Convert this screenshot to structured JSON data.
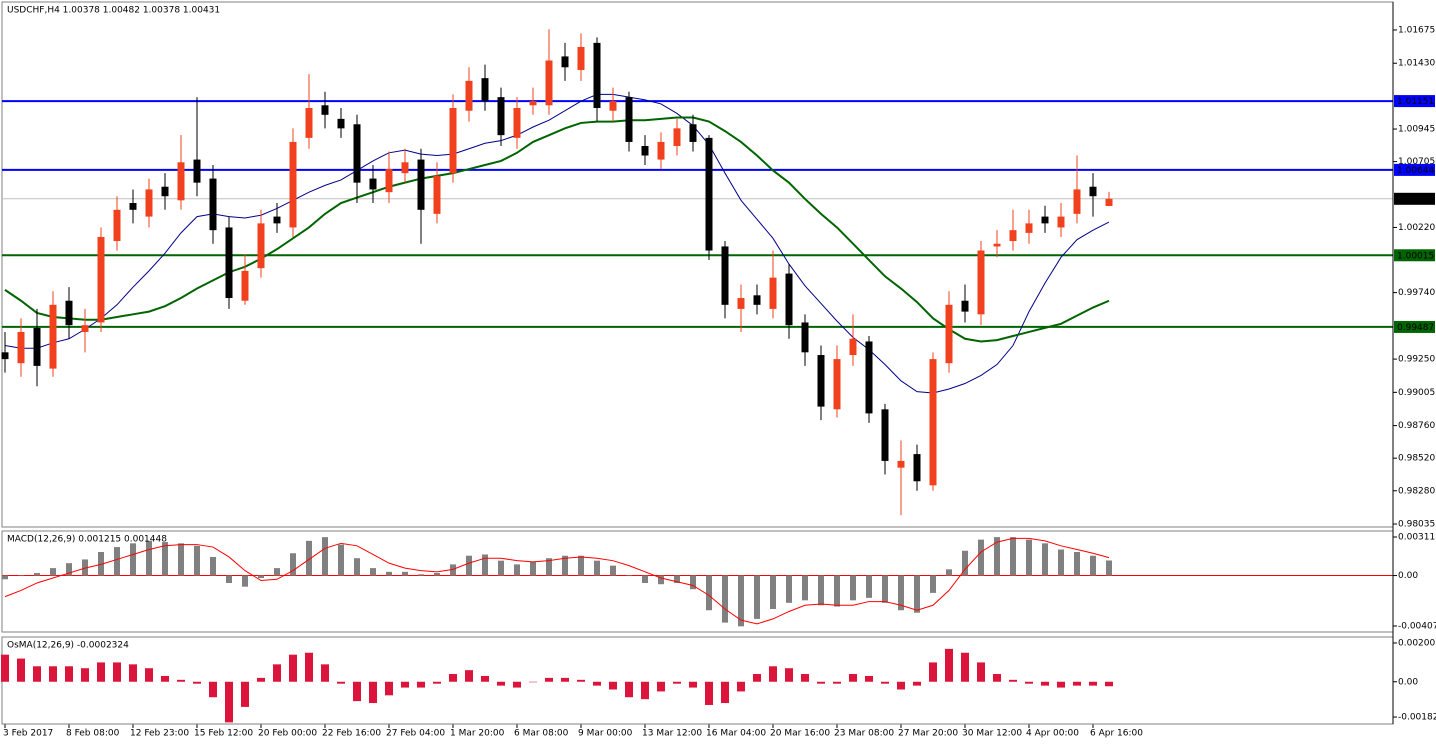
{
  "chart_data": [
    {
      "type": "candlestick",
      "title": "USDCHF,H4  1.00378 1.00482 1.00378 1.00431",
      "categories": [
        "3 Feb 2017",
        null,
        null,
        null,
        "8 Feb 08:00",
        null,
        null,
        null,
        "12 Feb 23:00",
        null,
        null,
        null,
        "15 Feb 12:00",
        null,
        null,
        null,
        "20 Feb 00:00",
        null,
        null,
        null,
        "22 Feb 16:00",
        null,
        null,
        null,
        "27 Feb 04:00",
        null,
        null,
        null,
        "1 Mar 20:00",
        null,
        null,
        null,
        "6 Mar 08:00",
        null,
        null,
        null,
        "9 Mar 00:00",
        null,
        null,
        null,
        "13 Mar 12:00",
        null,
        null,
        null,
        "16 Mar 04:00",
        null,
        null,
        null,
        "20 Mar 16:00",
        null,
        null,
        null,
        "23 Mar 08:00",
        null,
        null,
        null,
        "27 Mar 20:00",
        null,
        null,
        null,
        "30 Mar 12:00",
        null,
        null,
        null,
        "4 Apr 00:00",
        null,
        null,
        null,
        "6 Apr 16:00",
        null
      ],
      "open": [
        0.993,
        0.9922,
        0.9948,
        0.9918,
        0.9968,
        0.9945,
        0.9952,
        1.0012,
        1.004,
        1.003,
        1.0052,
        1.0042,
        1.0072,
        1.0058,
        1.0022,
        0.9968,
        0.9992,
        1.003,
        1.0022,
        1.0088,
        1.0112,
        1.0102,
        1.0098,
        1.0058,
        1.0048,
        1.0062,
        1.0072,
        1.0032,
        1.0062,
        1.0108,
        1.0132,
        1.0118,
        1.0088,
        1.0112,
        1.0112,
        1.0148,
        1.0138,
        1.0158,
        1.0108,
        1.0118,
        1.0082,
        1.0072,
        1.0082,
        1.0098,
        1.0088,
        1.0008,
        0.9962,
        0.9972,
        0.9962,
        0.9988,
        0.9952,
        0.9928,
        0.9888,
        0.9928,
        0.9938,
        0.9888,
        0.9845,
        0.9855,
        0.9832,
        0.9922,
        0.9968,
        0.9958,
        1.0008,
        1.0012,
        1.0018,
        1.003,
        1.0022,
        1.0032,
        1.0052,
        1.00378
      ],
      "high": [
        0.9945,
        0.9955,
        0.9962,
        0.9975,
        0.9978,
        0.9962,
        1.0022,
        1.0045,
        1.005,
        1.0058,
        1.0062,
        1.009,
        1.0118,
        1.0068,
        1.003,
        1.0002,
        1.0035,
        1.004,
        1.0095,
        1.0135,
        1.0122,
        1.011,
        1.0105,
        1.0068,
        1.0078,
        1.008,
        1.008,
        1.007,
        1.012,
        1.014,
        1.0142,
        1.0125,
        1.0118,
        1.0125,
        1.0168,
        1.0158,
        1.0165,
        1.0162,
        1.0125,
        1.0122,
        1.009,
        1.0092,
        1.0102,
        1.0105,
        1.009,
        1.0012,
        0.998,
        0.998,
        1.0005,
        0.9995,
        0.9958,
        0.9935,
        0.9935,
        0.9958,
        0.9942,
        0.9892,
        0.9865,
        0.9862,
        0.993,
        0.9975,
        0.998,
        1.0012,
        1.002,
        1.0035,
        1.0035,
        1.0038,
        1.004,
        1.0075,
        1.0062,
        1.00482
      ],
      "low": [
        0.9915,
        0.9912,
        0.9905,
        0.9912,
        0.994,
        0.993,
        0.9945,
        1.0005,
        1.0025,
        1.0022,
        1.0035,
        1.0035,
        1.0045,
        1.001,
        0.9962,
        0.9965,
        0.9985,
        1.0018,
        1.0015,
        1.008,
        1.0095,
        1.0088,
        1.004,
        1.004,
        1.004,
        1.0055,
        1.001,
        1.0025,
        1.0055,
        1.01,
        1.0108,
        1.0082,
        1.008,
        1.0105,
        1.0105,
        1.013,
        1.013,
        1.01,
        1.01,
        1.0078,
        1.0068,
        1.0065,
        1.0075,
        1.0078,
        0.9998,
        0.9955,
        0.9945,
        0.9958,
        0.9955,
        0.994,
        0.992,
        0.988,
        0.9882,
        0.992,
        0.9878,
        0.984,
        0.981,
        0.9828,
        0.9828,
        0.9915,
        0.9952,
        0.995,
        1.0,
        1.0005,
        1.001,
        1.0018,
        1.0015,
        1.0025,
        1.003,
        1.00378
      ],
      "close": [
        0.9925,
        0.9945,
        0.992,
        0.9965,
        0.995,
        0.995,
        1.0015,
        1.0035,
        1.0035,
        1.005,
        1.0045,
        1.007,
        1.0055,
        1.002,
        0.997,
        0.999,
        1.0025,
        1.0025,
        1.0085,
        1.011,
        1.0105,
        1.0095,
        1.0055,
        1.005,
        1.0065,
        1.007,
        1.0035,
        1.006,
        1.011,
        1.013,
        1.0115,
        1.009,
        1.011,
        1.0115,
        1.0145,
        1.014,
        1.0155,
        1.011,
        1.0115,
        1.0085,
        1.0075,
        1.0085,
        1.0095,
        1.0085,
        1.0005,
        0.9965,
        0.997,
        0.9965,
        0.9985,
        0.995,
        0.993,
        0.989,
        0.9925,
        0.994,
        0.9885,
        0.985,
        0.985,
        0.9835,
        0.9925,
        0.9965,
        0.996,
        1.0005,
        1.001,
        1.002,
        1.0025,
        1.0025,
        1.003,
        1.005,
        1.0045,
        1.00431
      ],
      "up_color": "#f0401e",
      "down_color": "#000000",
      "series": [
        {
          "color": "#00008b",
          "width": 1,
          "values": [
            0.9935,
            0.9933,
            0.9933,
            0.9937,
            0.994,
            0.9947,
            0.9955,
            0.9965,
            0.9978,
            0.999,
            1.0003,
            1.0018,
            1.003,
            1.0032,
            1.003,
            1.0029,
            1.0031,
            1.0036,
            1.0042,
            1.0048,
            1.0053,
            1.0057,
            1.0064,
            1.0071,
            1.0077,
            1.0079,
            1.0076,
            1.0075,
            1.0076,
            1.008,
            1.0084,
            1.0086,
            1.009,
            1.0096,
            1.0101,
            1.0108,
            1.0115,
            1.012,
            1.012,
            1.0118,
            1.0116,
            1.0113,
            1.0106,
            1.0097,
            1.0083,
            1.0062,
            1.0042,
            1.0028,
            1.0014,
            0.9995,
            0.9979,
            0.9966,
            0.9953,
            0.9941,
            0.9932,
            0.9921,
            0.9909,
            0.9901,
            0.99,
            0.9903,
            0.9907,
            0.9913,
            0.9921,
            0.9935,
            0.996,
            0.9981,
            1.0,
            1.0013,
            1.002,
            1.0026
          ]
        },
        {
          "color": "#006400",
          "width": 2,
          "values": [
            0.9976,
            0.9968,
            0.9959,
            0.9956,
            0.9955,
            0.9954,
            0.9954,
            0.9956,
            0.9958,
            0.996,
            0.9964,
            0.997,
            0.9977,
            0.9983,
            0.9989,
            0.9993,
            0.9999,
            1.0006,
            1.0014,
            1.0022,
            1.0032,
            1.004,
            1.0044,
            1.0048,
            1.0052,
            1.0055,
            1.0058,
            1.006,
            1.0062,
            1.0065,
            1.0068,
            1.0071,
            1.0077,
            1.0085,
            1.009,
            1.0095,
            1.0099,
            1.01,
            1.01,
            1.0101,
            1.0101,
            1.0102,
            1.0103,
            1.0103,
            1.01,
            1.0093,
            1.0085,
            1.0075,
            1.0064,
            1.0055,
            1.0043,
            1.0032,
            1.0022,
            1.001,
            0.9998,
            0.9986,
            0.9977,
            0.9967,
            0.9955,
            0.9947,
            0.994,
            0.9938,
            0.9939,
            0.9942,
            0.9945,
            0.9948,
            0.9951,
            0.9957,
            0.9963,
            0.9968
          ]
        }
      ],
      "levels": [
        {
          "value": 1.01151,
          "color": "#0000ff"
        },
        {
          "value": 1.00644,
          "color": "#0000ff"
        },
        {
          "value": 1.00015,
          "color": "#006400"
        },
        {
          "value": 0.99487,
          "color": "#006400"
        }
      ],
      "ylim": [
        0.98013,
        1.01881
      ],
      "yticks": [
        1.01675,
        {
          "value": 1.0143,
          "label": "1.01430"
        },
        1.00945,
        1.00705,
        {
          "value": 1.0022,
          "label": "1.00220"
        },
        {
          "value": 0.9974,
          "label": "0.99740"
        },
        {
          "value": 0.9925,
          "label": "0.99250"
        },
        0.99005,
        {
          "value": 0.9876,
          "label": "0.98760"
        },
        {
          "value": 0.9852,
          "label": "0.98520"
        },
        {
          "value": 0.9828,
          "label": "0.98280"
        },
        0.98035
      ]
    },
    {
      "type": "macd",
      "title": "MACD(12,26,9) 0.001215 0.001448",
      "series": [
        {
          "color": "#808080",
          "values": [
            -0.0003,
            0.0,
            0.0002,
            0.0006,
            0.001,
            0.0013,
            0.0019,
            0.0023,
            0.0026,
            0.0028,
            0.0027,
            0.0026,
            0.0024,
            0.0015,
            -0.0006,
            -0.0009,
            -0.0002,
            0.0006,
            0.0018,
            0.0028,
            0.0031,
            0.0025,
            0.0014,
            0.0006,
            0.0003,
            0.0003,
            0.0001,
            0.0002,
            0.0009,
            0.0016,
            0.0017,
            0.0012,
            0.0009,
            0.0011,
            0.0014,
            0.0016,
            0.0016,
            0.0012,
            0.0008,
            0.0,
            -0.0006,
            -0.0007,
            -0.0006,
            -0.0011,
            -0.0028,
            -0.0038,
            -0.0041,
            -0.0035,
            -0.0027,
            -0.0022,
            -0.002,
            -0.0024,
            -0.0025,
            -0.002,
            -0.0018,
            -0.0022,
            -0.0028,
            -0.003,
            -0.0014,
            0.0005,
            0.002,
            0.0029,
            0.0031,
            0.0031,
            0.0029,
            0.0026,
            0.0021,
            0.0019,
            0.0016,
            0.001215
          ]
        },
        {
          "color": "#ff0000",
          "values": [
            -0.0017,
            -0.0012,
            -0.0006,
            -0.0002,
            0.0002,
            0.0006,
            0.0009,
            0.0013,
            0.0017,
            0.0021,
            0.0024,
            0.0025,
            0.0025,
            0.0023,
            0.0015,
            0.0004,
            -0.0004,
            -0.0003,
            0.0004,
            0.0013,
            0.0022,
            0.0026,
            0.0024,
            0.0017,
            0.001,
            0.0006,
            0.0004,
            0.0003,
            0.0005,
            0.001,
            0.0014,
            0.0014,
            0.0012,
            0.0011,
            0.0012,
            0.0014,
            0.0015,
            0.0014,
            0.0012,
            0.0008,
            0.0003,
            -0.0002,
            -0.0005,
            -0.0008,
            -0.0016,
            -0.0027,
            -0.0036,
            -0.0039,
            -0.0035,
            -0.0029,
            -0.0024,
            -0.0023,
            -0.0024,
            -0.0024,
            -0.0021,
            -0.0021,
            -0.0024,
            -0.0028,
            -0.0024,
            -0.0012,
            0.0005,
            0.0019,
            0.0027,
            0.003,
            0.003,
            0.0028,
            0.0024,
            0.0021,
            0.0018,
            0.001448
          ]
        }
      ],
      "ylim": [
        -0.004556,
        0.003595
      ],
      "yticks": [
        0.003111,
        {
          "value": 0,
          "label": "0.00"
        },
        -0.004072
      ]
    },
    {
      "type": "bar",
      "title": "OsMA(12,26,9) -0.0002324",
      "color": "#dc143c",
      "values": [
        0.0014,
        0.0012,
        0.0008,
        0.0008,
        0.0008,
        0.0007,
        0.001,
        0.001,
        0.0009,
        0.0007,
        0.0003,
        0.0001,
        -0.0001,
        -0.0008,
        -0.0021,
        -0.0013,
        0.0002,
        0.0009,
        0.0014,
        0.0015,
        0.0009,
        -0.0001,
        -0.001,
        -0.0011,
        -0.0007,
        -0.0003,
        -0.0003,
        -0.0001,
        0.0004,
        0.0006,
        0.0003,
        -0.0002,
        -0.0003,
        0.0,
        0.0002,
        0.0002,
        0.0001,
        -0.0002,
        -0.0004,
        -0.0008,
        -0.0009,
        -0.0005,
        -0.0001,
        -0.0003,
        -0.0012,
        -0.0011,
        -0.0005,
        0.0004,
        0.0008,
        0.0007,
        0.0004,
        -0.0001,
        -0.0001,
        0.0004,
        0.0003,
        -0.0001,
        -0.0004,
        -0.0002,
        0.001,
        0.0017,
        0.0015,
        0.001,
        0.0004,
        0.0001,
        -0.0001,
        -0.0002,
        -0.0003,
        -0.0002,
        -0.0002,
        -0.0002324
      ],
      "ylim": [
        -0.002184,
        0.002314
      ],
      "yticks": [
        0.002005,
        {
          "value": 0,
          "label": "0.00"
        },
        -0.001824
      ]
    }
  ]
}
